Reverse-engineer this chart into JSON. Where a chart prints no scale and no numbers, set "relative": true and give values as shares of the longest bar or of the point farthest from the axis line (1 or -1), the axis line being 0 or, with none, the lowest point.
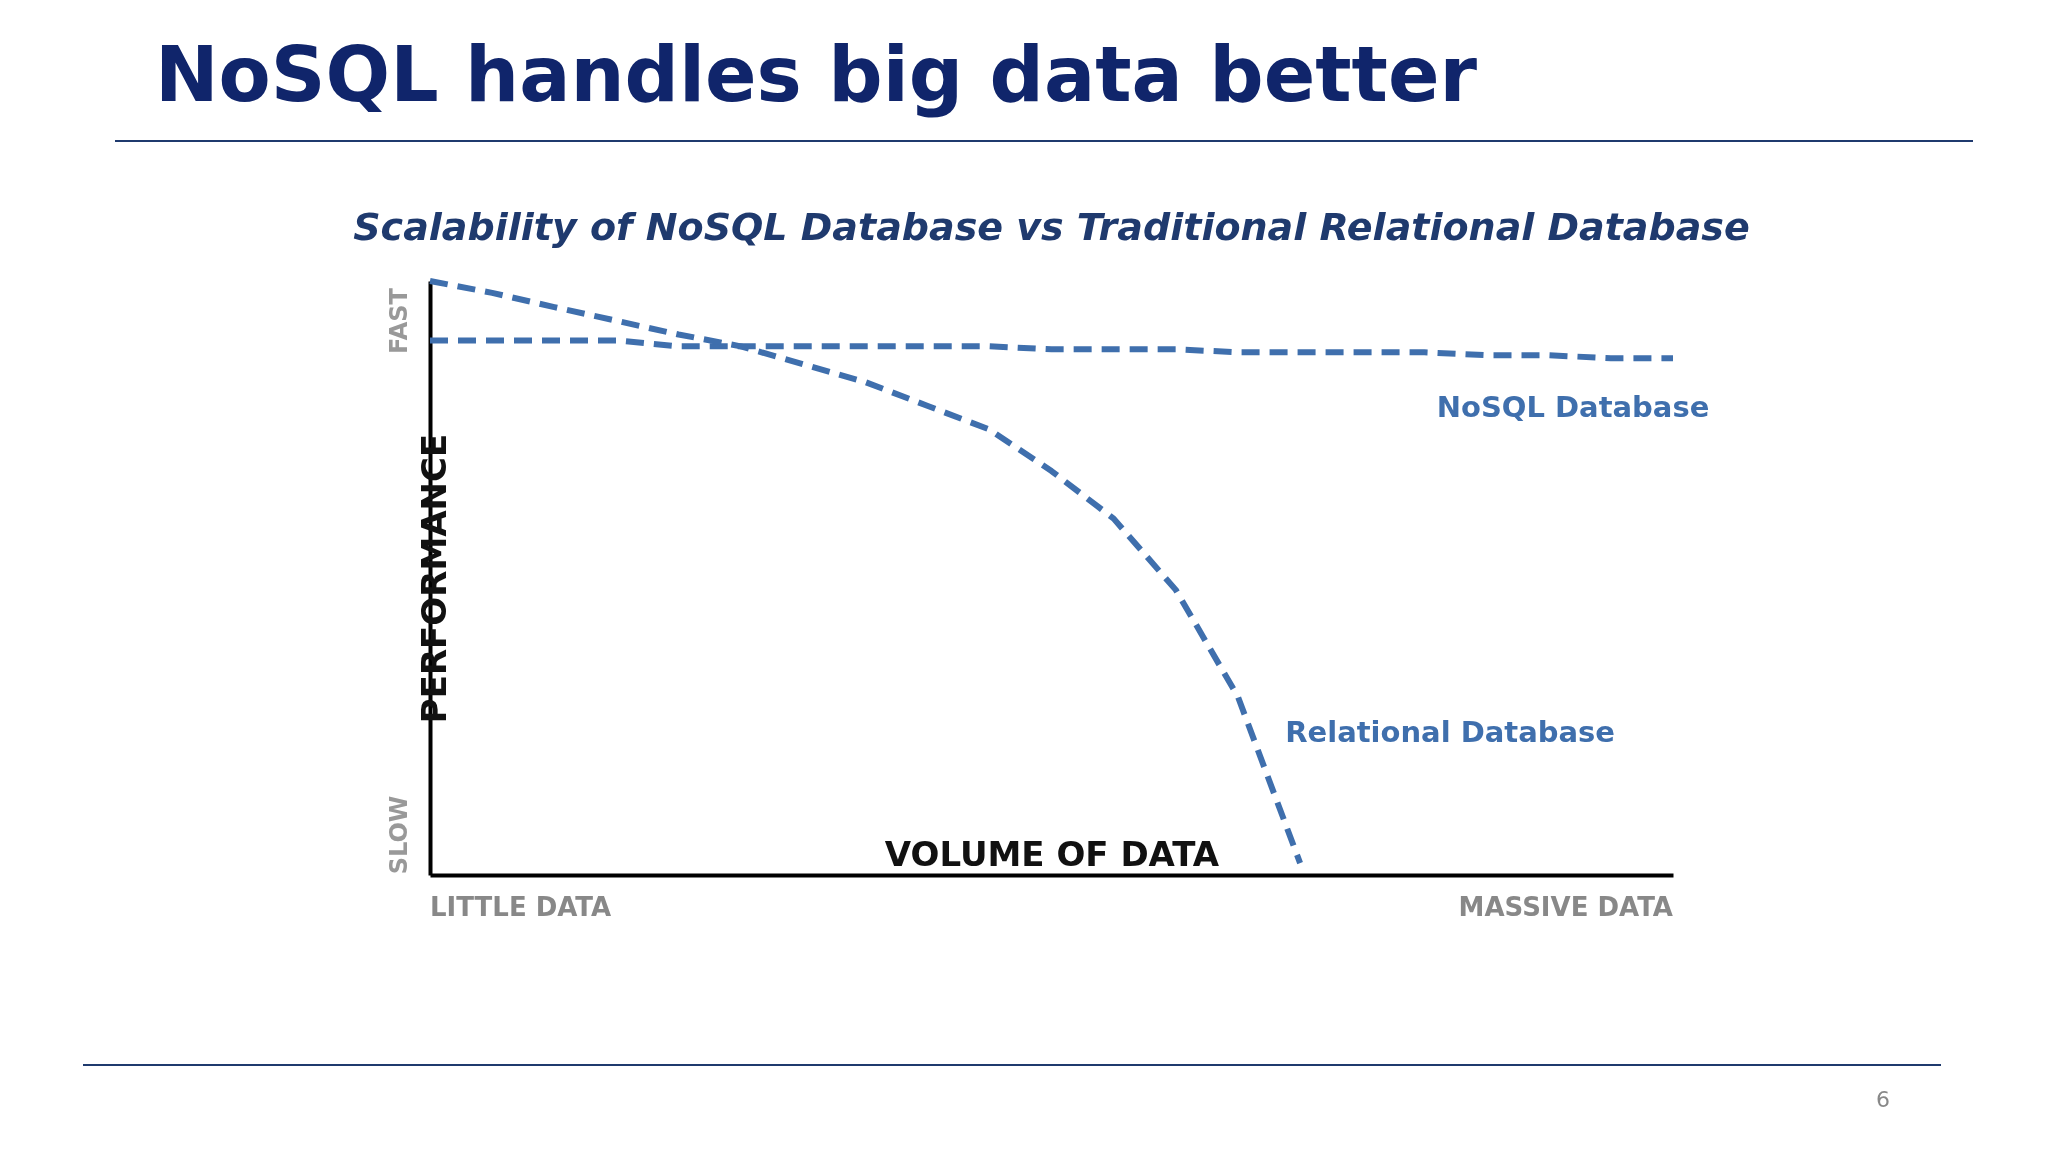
{
  "chart_data": {
    "type": "line",
    "title": "NoSQL handles big data better",
    "subtitle": "Scalability of NoSQL Database vs Traditional Relational Database",
    "xlabel": "VOLUME OF DATA",
    "ylabel": "PERFORMANCE",
    "categories": [
      null,
      null,
      null,
      null,
      null,
      null,
      null,
      null,
      null,
      null,
      null,
      null,
      null,
      null,
      null,
      null,
      null,
      null,
      null,
      null,
      null
    ],
    "relative": true,
    "grid": false,
    "legend": false,
    "marker": "none",
    "line_style": "dashed",
    "series": [
      {
        "name": "NoSQL Database",
        "color": "#3f6fad",
        "values": [
          0.9,
          0.9,
          0.9,
          0.9,
          0.89,
          0.89,
          0.89,
          0.89,
          0.89,
          0.89,
          0.885,
          0.885,
          0.885,
          0.88,
          0.88,
          0.88,
          0.88,
          0.875,
          0.875,
          0.87,
          0.87
        ]
      },
      {
        "name": "Relational Database",
        "color": "#3f6fad",
        "values": [
          1.0,
          0.98,
          0.956,
          0.933,
          0.91,
          0.89,
          0.86,
          0.83,
          0.79,
          0.75,
          0.68,
          0.6,
          0.48,
          0.3,
          0.02,
          null,
          null,
          null,
          null,
          null,
          null
        ]
      }
    ],
    "annotations": [
      "FAST",
      "SLOW",
      "LITTLE DATA",
      "MASSIVE DATA",
      "6"
    ]
  }
}
